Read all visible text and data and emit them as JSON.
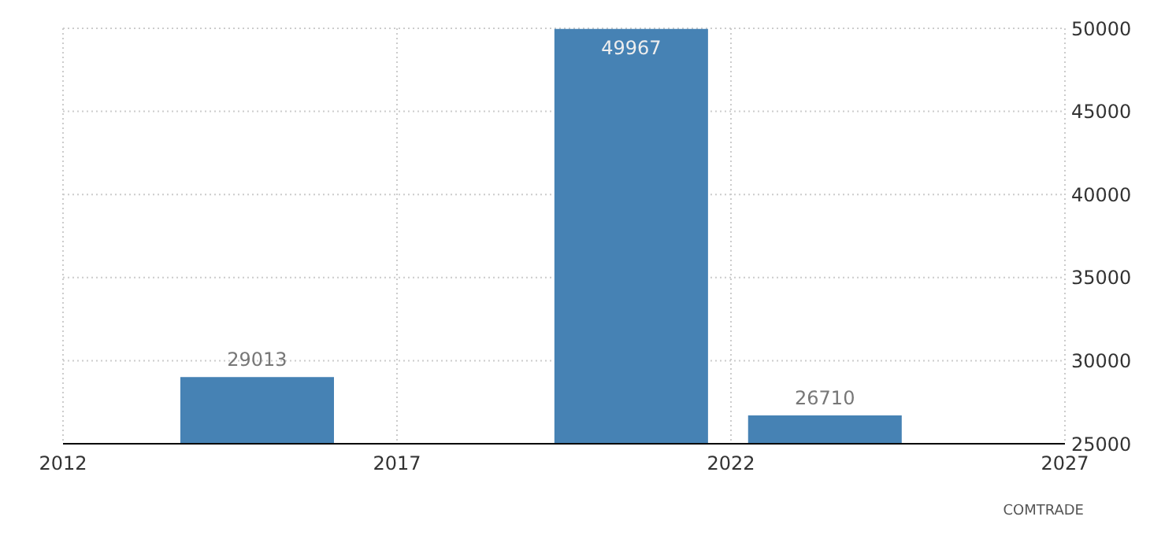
{
  "chart_data": {
    "type": "bar",
    "x": [
      2014.9,
      2020.5,
      2023.4
    ],
    "values": [
      29013,
      49967,
      26710
    ],
    "color": "#4682b4",
    "xlim": [
      2012,
      2027
    ],
    "xticks": [
      2012,
      2017,
      2022,
      2027
    ],
    "ylim": [
      25000,
      50000
    ],
    "yticks": [
      25000,
      30000,
      35000,
      40000,
      45000,
      50000
    ],
    "grid": true,
    "data_labels": true,
    "annotations": [
      "COMTRADE"
    ]
  }
}
